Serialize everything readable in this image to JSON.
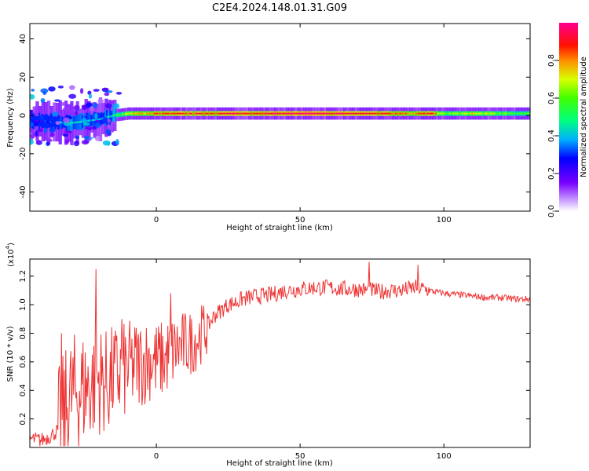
{
  "figure": {
    "title": "C2E4.2024.148.01.31.G09"
  },
  "chart_data": [
    {
      "type": "heatmap",
      "title": "C2E4.2024.148.01.31.G09",
      "xlabel": "Height of straight line (km)",
      "ylabel": "Frequency (Hz)",
      "xlim": [
        -44,
        130
      ],
      "ylim": [
        -50,
        48
      ],
      "x_ticks": [
        0,
        50,
        100
      ],
      "y_ticks": [
        -40,
        -20,
        0,
        20,
        40
      ],
      "colorbar": {
        "label": "Normalized spectral amplitude",
        "range": [
          0.0,
          1.0
        ],
        "ticks": [
          0.0,
          0.2,
          0.4,
          0.6,
          0.8
        ],
        "colormap": "rainbow (magenta-blue-cyan-green-yellow-red-pink)"
      },
      "ridge": {
        "description": "narrow high-amplitude band near 0 Hz",
        "x": [
          -40,
          -30,
          -20,
          -15,
          -10,
          0,
          20,
          50,
          80,
          90,
          95,
          100,
          110,
          130
        ],
        "center_freq_hz": [
          -3,
          -4,
          -2,
          0,
          1,
          1,
          1,
          1,
          1,
          1,
          1,
          1,
          1,
          1
        ],
        "amplitude": [
          0.25,
          0.45,
          0.35,
          0.5,
          0.7,
          0.85,
          0.9,
          0.95,
          0.9,
          0.8,
          0.9,
          0.6,
          0.7,
          0.55
        ]
      }
    },
    {
      "type": "line",
      "xlabel": "Height of straight line (km)",
      "ylabel": "SNR (10 * v/v)",
      "scale_label": "(x10",
      "scale_exp": "4",
      "xlim": [
        -44,
        130
      ],
      "ylim": [
        0.0,
        1.32
      ],
      "x_ticks": [
        0,
        50,
        100
      ],
      "y_ticks": [
        0.2,
        0.4,
        0.6,
        0.8,
        1.0,
        1.2
      ],
      "line_color": "#ee3333",
      "series": [
        {
          "x": [
            -44,
            -40,
            -37,
            -34,
            -32,
            -30,
            -27,
            -24,
            -22,
            -20,
            -17,
            -15,
            -12,
            -10,
            -7,
            -5,
            -2,
            0,
            3,
            5,
            8,
            10,
            13,
            15,
            18,
            20,
            23,
            25,
            28,
            30,
            35,
            40,
            45,
            50,
            55,
            60,
            65,
            70,
            73,
            75,
            78,
            80,
            85,
            90,
            93,
            95,
            97,
            100,
            105,
            110,
            115,
            120,
            125,
            130
          ],
          "y": [
            0.06,
            0.05,
            0.08,
            0.12,
            0.22,
            0.35,
            0.4,
            0.42,
            0.45,
            0.48,
            0.45,
            0.5,
            0.52,
            0.55,
            0.58,
            0.6,
            0.62,
            0.6,
            0.62,
            0.66,
            0.7,
            0.72,
            0.74,
            0.78,
            0.85,
            0.92,
            0.97,
            1.0,
            1.02,
            1.04,
            1.06,
            1.07,
            1.1,
            1.11,
            1.12,
            1.12,
            1.11,
            1.11,
            1.1,
            1.1,
            1.09,
            1.1,
            1.1,
            1.12,
            1.11,
            1.1,
            1.09,
            1.08,
            1.07,
            1.06,
            1.05,
            1.05,
            1.04,
            1.04
          ]
        }
      ],
      "peaks": [
        {
          "x": -33,
          "y": 0.8
        },
        {
          "x": -21,
          "y": 1.25
        },
        {
          "x": -12,
          "y": 0.9
        },
        {
          "x": 5,
          "y": 1.08
        },
        {
          "x": 74,
          "y": 1.3
        },
        {
          "x": 91,
          "y": 1.28
        }
      ]
    }
  ]
}
